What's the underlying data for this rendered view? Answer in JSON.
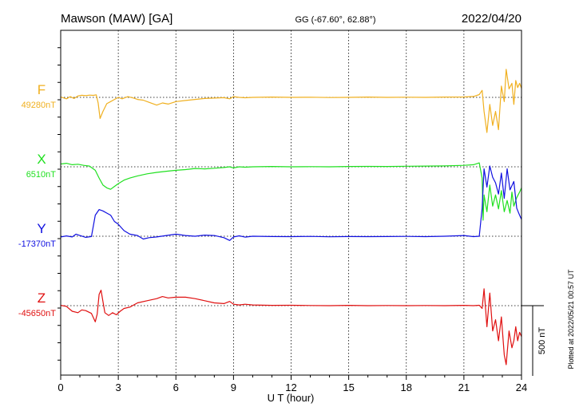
{
  "chart_data": {
    "type": "line",
    "title": "Mawson (MAW)  [GA]",
    "coords": "GG (-67.60°,  62.88°)",
    "date": "2022/04/20",
    "xlabel": "U T (hour)",
    "xlim": [
      0,
      24
    ],
    "xticks": [
      "0",
      "3",
      "6",
      "9",
      "12",
      "15",
      "18",
      "21",
      "24"
    ],
    "grid": true,
    "scale_bar_label": "500 nT",
    "scale_bar_nT": 500,
    "plotted_note": "Plotted at 2022/05/21 00:57 UT",
    "series": [
      {
        "name": "F",
        "baseline_label": "49280nT",
        "color": "#f0b020",
        "points": [
          [
            0,
            2
          ],
          [
            0.3,
            -10
          ],
          [
            0.5,
            5
          ],
          [
            0.7,
            -8
          ],
          [
            0.9,
            10
          ],
          [
            1.1,
            15
          ],
          [
            1.3,
            12
          ],
          [
            1.5,
            16
          ],
          [
            1.7,
            14
          ],
          [
            1.85,
            18
          ],
          [
            1.95,
            -40
          ],
          [
            2.05,
            -150
          ],
          [
            2.2,
            -100
          ],
          [
            2.4,
            -45
          ],
          [
            2.6,
            -30
          ],
          [
            2.8,
            -15
          ],
          [
            3.0,
            0
          ],
          [
            3.2,
            -10
          ],
          [
            3.5,
            5
          ],
          [
            3.8,
            -5
          ],
          [
            4.0,
            -15
          ],
          [
            4.3,
            -20
          ],
          [
            4.6,
            -35
          ],
          [
            5.0,
            -55
          ],
          [
            5.3,
            -40
          ],
          [
            5.6,
            -48
          ],
          [
            6.0,
            -30
          ],
          [
            6.5,
            -22
          ],
          [
            7.0,
            -15
          ],
          [
            7.5,
            -8
          ],
          [
            8.0,
            -5
          ],
          [
            8.5,
            -2
          ],
          [
            8.8,
            -10
          ],
          [
            9.0,
            5
          ],
          [
            9.3,
            0
          ],
          [
            9.6,
            -3
          ],
          [
            10,
            0
          ],
          [
            11,
            2
          ],
          [
            12,
            0
          ],
          [
            13,
            1
          ],
          [
            14,
            -1
          ],
          [
            15,
            0
          ],
          [
            16,
            2
          ],
          [
            17,
            0
          ],
          [
            18,
            1
          ],
          [
            19,
            0
          ],
          [
            20,
            2
          ],
          [
            21,
            3
          ],
          [
            21.5,
            6
          ],
          [
            21.8,
            20
          ],
          [
            21.95,
            50
          ],
          [
            22.05,
            -100
          ],
          [
            22.2,
            -250
          ],
          [
            22.35,
            -50
          ],
          [
            22.5,
            -200
          ],
          [
            22.65,
            -100
          ],
          [
            22.8,
            -230
          ],
          [
            22.95,
            80
          ],
          [
            23.1,
            -30
          ],
          [
            23.2,
            200
          ],
          [
            23.35,
            60
          ],
          [
            23.5,
            100
          ],
          [
            23.6,
            -50
          ],
          [
            23.7,
            120
          ],
          [
            23.8,
            70
          ],
          [
            23.9,
            100
          ],
          [
            24,
            65
          ]
        ]
      },
      {
        "name": "X",
        "baseline_label": "6510nT",
        "color": "#20e020",
        "points": [
          [
            0,
            20
          ],
          [
            0.3,
            25
          ],
          [
            0.6,
            15
          ],
          [
            0.9,
            18
          ],
          [
            1.2,
            10
          ],
          [
            1.5,
            5
          ],
          [
            1.8,
            -25
          ],
          [
            2.0,
            -80
          ],
          [
            2.2,
            -130
          ],
          [
            2.4,
            -150
          ],
          [
            2.6,
            -160
          ],
          [
            2.8,
            -140
          ],
          [
            3.0,
            -120
          ],
          [
            3.3,
            -95
          ],
          [
            3.6,
            -80
          ],
          [
            4.0,
            -65
          ],
          [
            4.5,
            -50
          ],
          [
            5.0,
            -40
          ],
          [
            5.5,
            -32
          ],
          [
            6.0,
            -25
          ],
          [
            6.5,
            -20
          ],
          [
            7.0,
            -12
          ],
          [
            7.5,
            -15
          ],
          [
            8.0,
            -10
          ],
          [
            8.5,
            -5
          ],
          [
            8.8,
            0
          ],
          [
            9.0,
            -8
          ],
          [
            9.3,
            0
          ],
          [
            9.6,
            -3
          ],
          [
            10,
            0
          ],
          [
            11,
            2
          ],
          [
            12,
            0
          ],
          [
            13,
            1
          ],
          [
            14,
            0
          ],
          [
            15,
            2
          ],
          [
            16,
            3
          ],
          [
            17,
            2
          ],
          [
            18,
            4
          ],
          [
            19,
            5
          ],
          [
            20,
            6
          ],
          [
            21,
            10
          ],
          [
            21.5,
            15
          ],
          [
            21.8,
            28
          ],
          [
            21.95,
            -80
          ],
          [
            22.0,
            -380
          ],
          [
            22.05,
            -200
          ],
          [
            22.2,
            -320
          ],
          [
            22.35,
            -130
          ],
          [
            22.5,
            -280
          ],
          [
            22.65,
            -200
          ],
          [
            22.8,
            -300
          ],
          [
            22.95,
            -170
          ],
          [
            23.1,
            -320
          ],
          [
            23.25,
            -240
          ],
          [
            23.4,
            -330
          ],
          [
            23.5,
            -180
          ],
          [
            23.6,
            -280
          ],
          [
            23.75,
            -220
          ],
          [
            23.9,
            -180
          ],
          [
            24,
            -150
          ]
        ]
      },
      {
        "name": "Y",
        "baseline_label": "-17370nT",
        "color": "#1010e0",
        "points": [
          [
            0,
            -5
          ],
          [
            0.3,
            2
          ],
          [
            0.6,
            -5
          ],
          [
            0.8,
            15
          ],
          [
            1.0,
            5
          ],
          [
            1.3,
            -8
          ],
          [
            1.6,
            -2
          ],
          [
            1.8,
            150
          ],
          [
            2.0,
            190
          ],
          [
            2.2,
            180
          ],
          [
            2.4,
            165
          ],
          [
            2.6,
            150
          ],
          [
            2.8,
            105
          ],
          [
            3.0,
            85
          ],
          [
            3.3,
            40
          ],
          [
            3.6,
            15
          ],
          [
            4.0,
            5
          ],
          [
            4.3,
            -20
          ],
          [
            4.6,
            -10
          ],
          [
            5.0,
            -5
          ],
          [
            5.5,
            5
          ],
          [
            6.0,
            15
          ],
          [
            6.5,
            5
          ],
          [
            7.0,
            0
          ],
          [
            7.5,
            8
          ],
          [
            8.0,
            5
          ],
          [
            8.5,
            -10
          ],
          [
            8.8,
            -30
          ],
          [
            9.0,
            -5
          ],
          [
            9.3,
            3
          ],
          [
            9.6,
            -6
          ],
          [
            10,
            0
          ],
          [
            11,
            -2
          ],
          [
            12,
            -3
          ],
          [
            13,
            -1
          ],
          [
            14,
            -4
          ],
          [
            15,
            -2
          ],
          [
            16,
            -3
          ],
          [
            17,
            -2
          ],
          [
            18,
            -1
          ],
          [
            19,
            -3
          ],
          [
            20,
            0
          ],
          [
            21,
            5
          ],
          [
            21.5,
            -3
          ],
          [
            21.8,
            0
          ],
          [
            21.95,
            200
          ],
          [
            22.05,
            480
          ],
          [
            22.2,
            350
          ],
          [
            22.35,
            500
          ],
          [
            22.5,
            420
          ],
          [
            22.65,
            380
          ],
          [
            22.8,
            300
          ],
          [
            22.95,
            450
          ],
          [
            23.1,
            270
          ],
          [
            23.25,
            480
          ],
          [
            23.4,
            330
          ],
          [
            23.5,
            360
          ],
          [
            23.6,
            390
          ],
          [
            23.75,
            200
          ],
          [
            23.9,
            150
          ],
          [
            24,
            120
          ]
        ]
      },
      {
        "name": "Z",
        "baseline_label": "-45650nT",
        "color": "#e01010",
        "points": [
          [
            0,
            2
          ],
          [
            0.3,
            -5
          ],
          [
            0.6,
            -40
          ],
          [
            0.9,
            -50
          ],
          [
            1.1,
            -30
          ],
          [
            1.3,
            -35
          ],
          [
            1.6,
            -55
          ],
          [
            1.8,
            -115
          ],
          [
            1.9,
            -60
          ],
          [
            2.0,
            80
          ],
          [
            2.1,
            110
          ],
          [
            2.3,
            -50
          ],
          [
            2.5,
            -70
          ],
          [
            2.7,
            -50
          ],
          [
            2.9,
            -65
          ],
          [
            3.1,
            -40
          ],
          [
            3.3,
            -20
          ],
          [
            3.6,
            -10
          ],
          [
            4.0,
            20
          ],
          [
            4.5,
            35
          ],
          [
            5.0,
            50
          ],
          [
            5.3,
            65
          ],
          [
            5.6,
            55
          ],
          [
            6.0,
            60
          ],
          [
            6.5,
            60
          ],
          [
            7.0,
            50
          ],
          [
            7.5,
            35
          ],
          [
            8.0,
            20
          ],
          [
            8.5,
            15
          ],
          [
            8.8,
            30
          ],
          [
            9.0,
            10
          ],
          [
            9.3,
            5
          ],
          [
            9.6,
            10
          ],
          [
            10,
            5
          ],
          [
            11,
            2
          ],
          [
            12,
            3
          ],
          [
            13,
            1
          ],
          [
            14,
            0
          ],
          [
            15,
            2
          ],
          [
            16,
            0
          ],
          [
            17,
            1
          ],
          [
            18,
            0
          ],
          [
            19,
            1
          ],
          [
            20,
            0
          ],
          [
            21,
            2
          ],
          [
            21.5,
            0
          ],
          [
            21.8,
            3
          ],
          [
            21.95,
            -20
          ],
          [
            22.05,
            120
          ],
          [
            22.2,
            -150
          ],
          [
            22.35,
            90
          ],
          [
            22.5,
            -180
          ],
          [
            22.65,
            -100
          ],
          [
            22.8,
            -250
          ],
          [
            22.95,
            -80
          ],
          [
            23.1,
            -350
          ],
          [
            23.2,
            -420
          ],
          [
            23.35,
            -180
          ],
          [
            23.5,
            -300
          ],
          [
            23.6,
            -250
          ],
          [
            23.7,
            -150
          ],
          [
            23.8,
            -250
          ],
          [
            23.9,
            -190
          ],
          [
            24,
            -220
          ]
        ]
      }
    ]
  }
}
